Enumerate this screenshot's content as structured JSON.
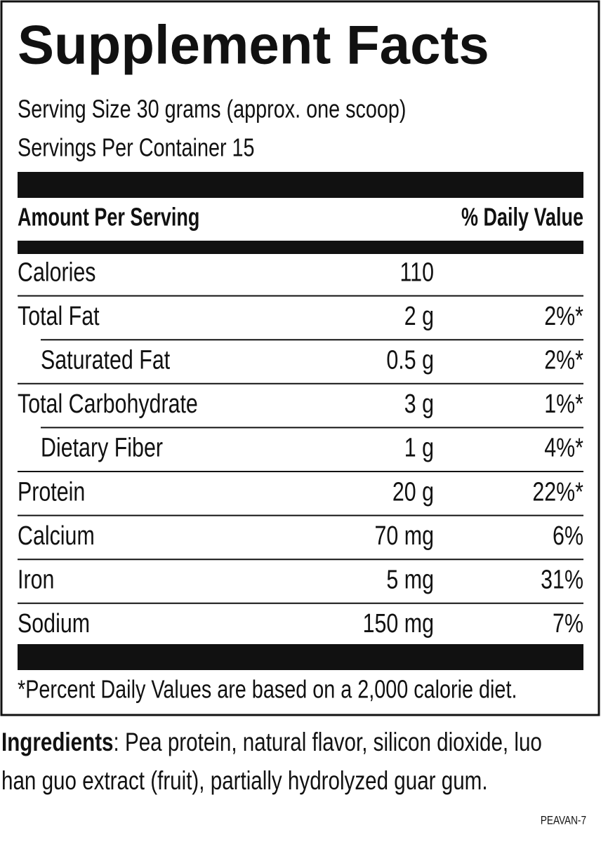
{
  "header": {
    "title": "Supplement Facts",
    "serving_size": "Serving Size 30 grams (approx. one scoop)",
    "servings_per_container": "Servings Per Container 15"
  },
  "table": {
    "columns": [
      "Amount Per Serving",
      "% Daily Value"
    ],
    "rows": [
      {
        "name": "Calories",
        "amount": "110"
      },
      {
        "name": "Total Fat",
        "amount": "2 g",
        "daily_value": "2%*"
      },
      {
        "name": "Saturated Fat",
        "amount": "0.5 g",
        "daily_value": "2%*",
        "indent": true
      },
      {
        "name": "Total Carbohydrate",
        "amount": "3 g",
        "daily_value": "1%*"
      },
      {
        "name": "Dietary Fiber",
        "amount": "1 g",
        "daily_value": "4%*",
        "indent": true
      },
      {
        "name": "Protein",
        "amount": "20 g",
        "daily_value": "22%*"
      },
      {
        "name": "Calcium",
        "amount": "70 mg",
        "daily_value": "6%"
      },
      {
        "name": "Iron",
        "amount": "5 mg",
        "daily_value": "31%"
      },
      {
        "name": "Sodium",
        "amount": "150 mg",
        "daily_value": "7%"
      }
    ]
  },
  "footnote": "*Percent Daily Values are based on a 2,000 calorie diet.",
  "ingredients": {
    "label": "Ingredients",
    "lines": [
      ": Pea protein, natural flavor, silicon dioxide, luo",
      "han guo extract (fruit), partially hydrolyzed guar gum."
    ]
  },
  "code": "PEAVAN-7"
}
